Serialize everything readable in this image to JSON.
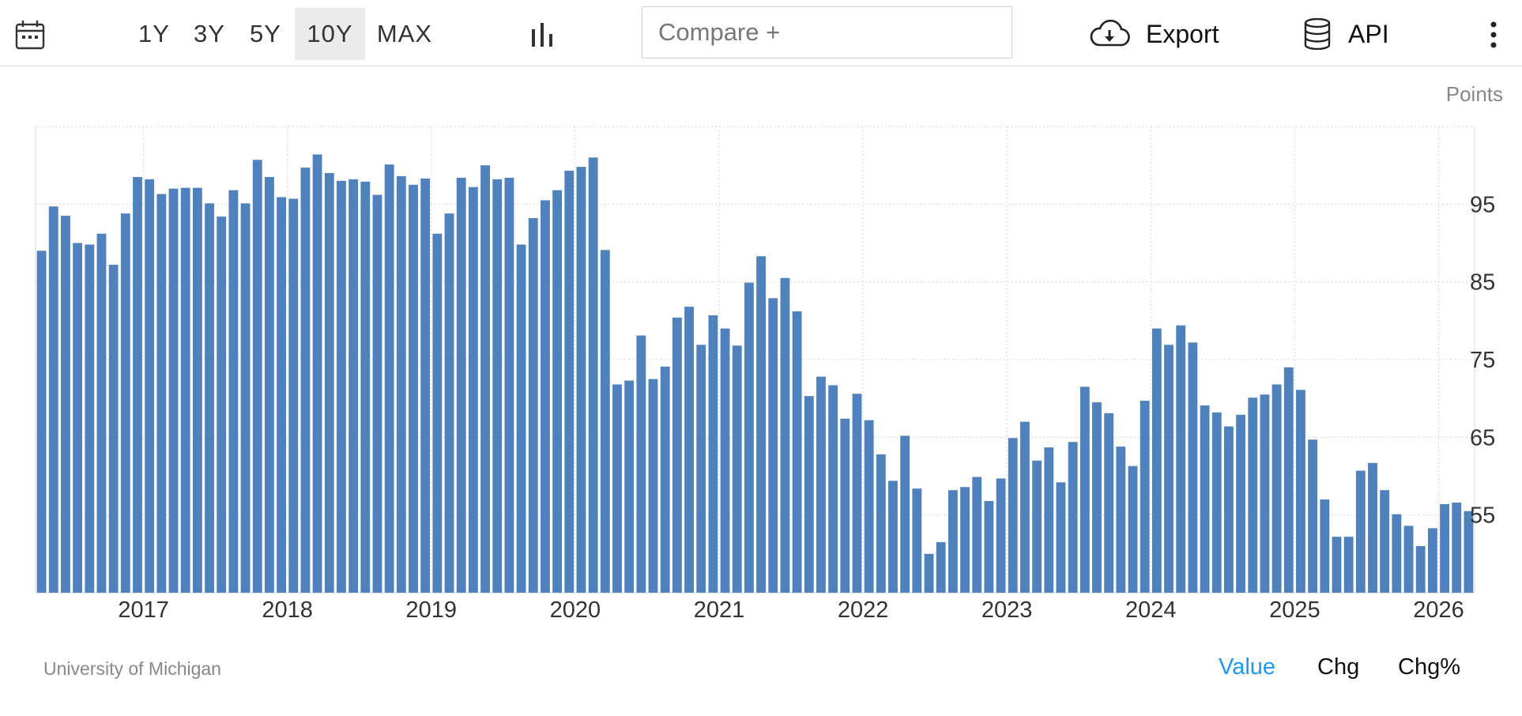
{
  "toolbar": {
    "calendar_icon": "calendar-icon",
    "ranges": [
      "1Y",
      "3Y",
      "5Y",
      "10Y",
      "MAX"
    ],
    "active_range": "10Y",
    "chart_type_icon": "bar-chart-icon",
    "compare_placeholder": "Compare +",
    "export_label": "Export",
    "export_icon": "cloud-download-icon",
    "api_label": "API",
    "api_icon": "database-icon",
    "more_icon": "vertical-dots-icon"
  },
  "units": "Points",
  "source": "University of Michigan",
  "modes": [
    "Value",
    "Chg",
    "Chg%"
  ],
  "active_mode": "Value",
  "colors": {
    "bar": "#4f81bd",
    "accent": "#2196f3",
    "grid": "#d8d8d8"
  },
  "chart_data": {
    "type": "bar",
    "x_ticks": [
      "2017",
      "2018",
      "2019",
      "2020",
      "2021",
      "2022",
      "2023",
      "2024",
      "2025",
      "2026"
    ],
    "y_ticks": [
      55,
      65,
      75,
      85,
      95
    ],
    "ylim": [
      45,
      105
    ],
    "start": "2016-04",
    "interval": "monthly",
    "values": [
      89.0,
      94.7,
      93.5,
      90.0,
      89.8,
      91.2,
      87.2,
      93.8,
      98.5,
      98.2,
      96.3,
      97.0,
      97.1,
      97.1,
      95.1,
      93.4,
      96.8,
      95.1,
      100.7,
      98.5,
      95.9,
      95.7,
      99.7,
      101.4,
      99.0,
      98.0,
      98.2,
      97.9,
      96.2,
      100.1,
      98.6,
      97.5,
      98.3,
      91.2,
      93.8,
      98.4,
      97.2,
      100.0,
      98.2,
      98.4,
      89.8,
      93.2,
      95.5,
      96.8,
      99.3,
      99.8,
      101.0,
      89.1,
      71.8,
      72.3,
      78.1,
      72.5,
      74.1,
      80.4,
      81.8,
      76.9,
      80.7,
      79.0,
      76.8,
      84.9,
      88.3,
      82.9,
      85.5,
      81.2,
      70.3,
      72.8,
      71.7,
      67.4,
      70.6,
      67.2,
      62.8,
      59.4,
      65.2,
      58.4,
      50.0,
      51.5,
      58.2,
      58.6,
      59.9,
      56.8,
      59.7,
      64.9,
      67.0,
      62.0,
      63.7,
      59.2,
      64.4,
      71.5,
      69.5,
      68.1,
      63.8,
      61.3,
      69.7,
      79.0,
      76.9,
      79.4,
      77.2,
      69.1,
      68.2,
      66.4,
      67.9,
      70.1,
      70.5,
      71.8,
      74.0,
      71.1,
      64.7,
      57.0,
      52.2,
      52.2,
      60.7,
      61.7,
      58.2,
      55.1,
      53.6,
      51.0,
      53.3,
      56.4,
      56.6,
      55.5
    ]
  }
}
